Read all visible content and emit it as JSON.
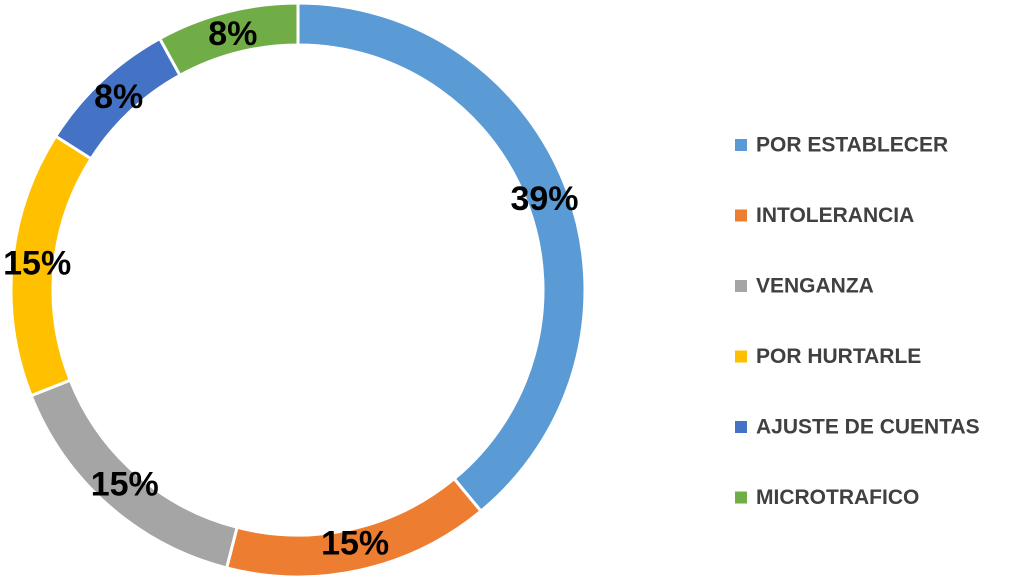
{
  "chart_data": {
    "type": "donut",
    "categories": [
      "POR ESTABLECER",
      "INTOLERANCIA",
      "VENGANZA",
      "POR HURTARLE",
      "AJUSTE DE CUENTAS",
      "MICROTRAFICO"
    ],
    "values": [
      39,
      15,
      15,
      15,
      8,
      8
    ],
    "value_labels": [
      "39%",
      "15%",
      "15%",
      "15%",
      "8%",
      "8%"
    ],
    "colors": [
      "#5b9bd5",
      "#ed7d31",
      "#a5a5a5",
      "#ffc000",
      "#4472c4",
      "#70ad47"
    ],
    "legend": "right"
  }
}
